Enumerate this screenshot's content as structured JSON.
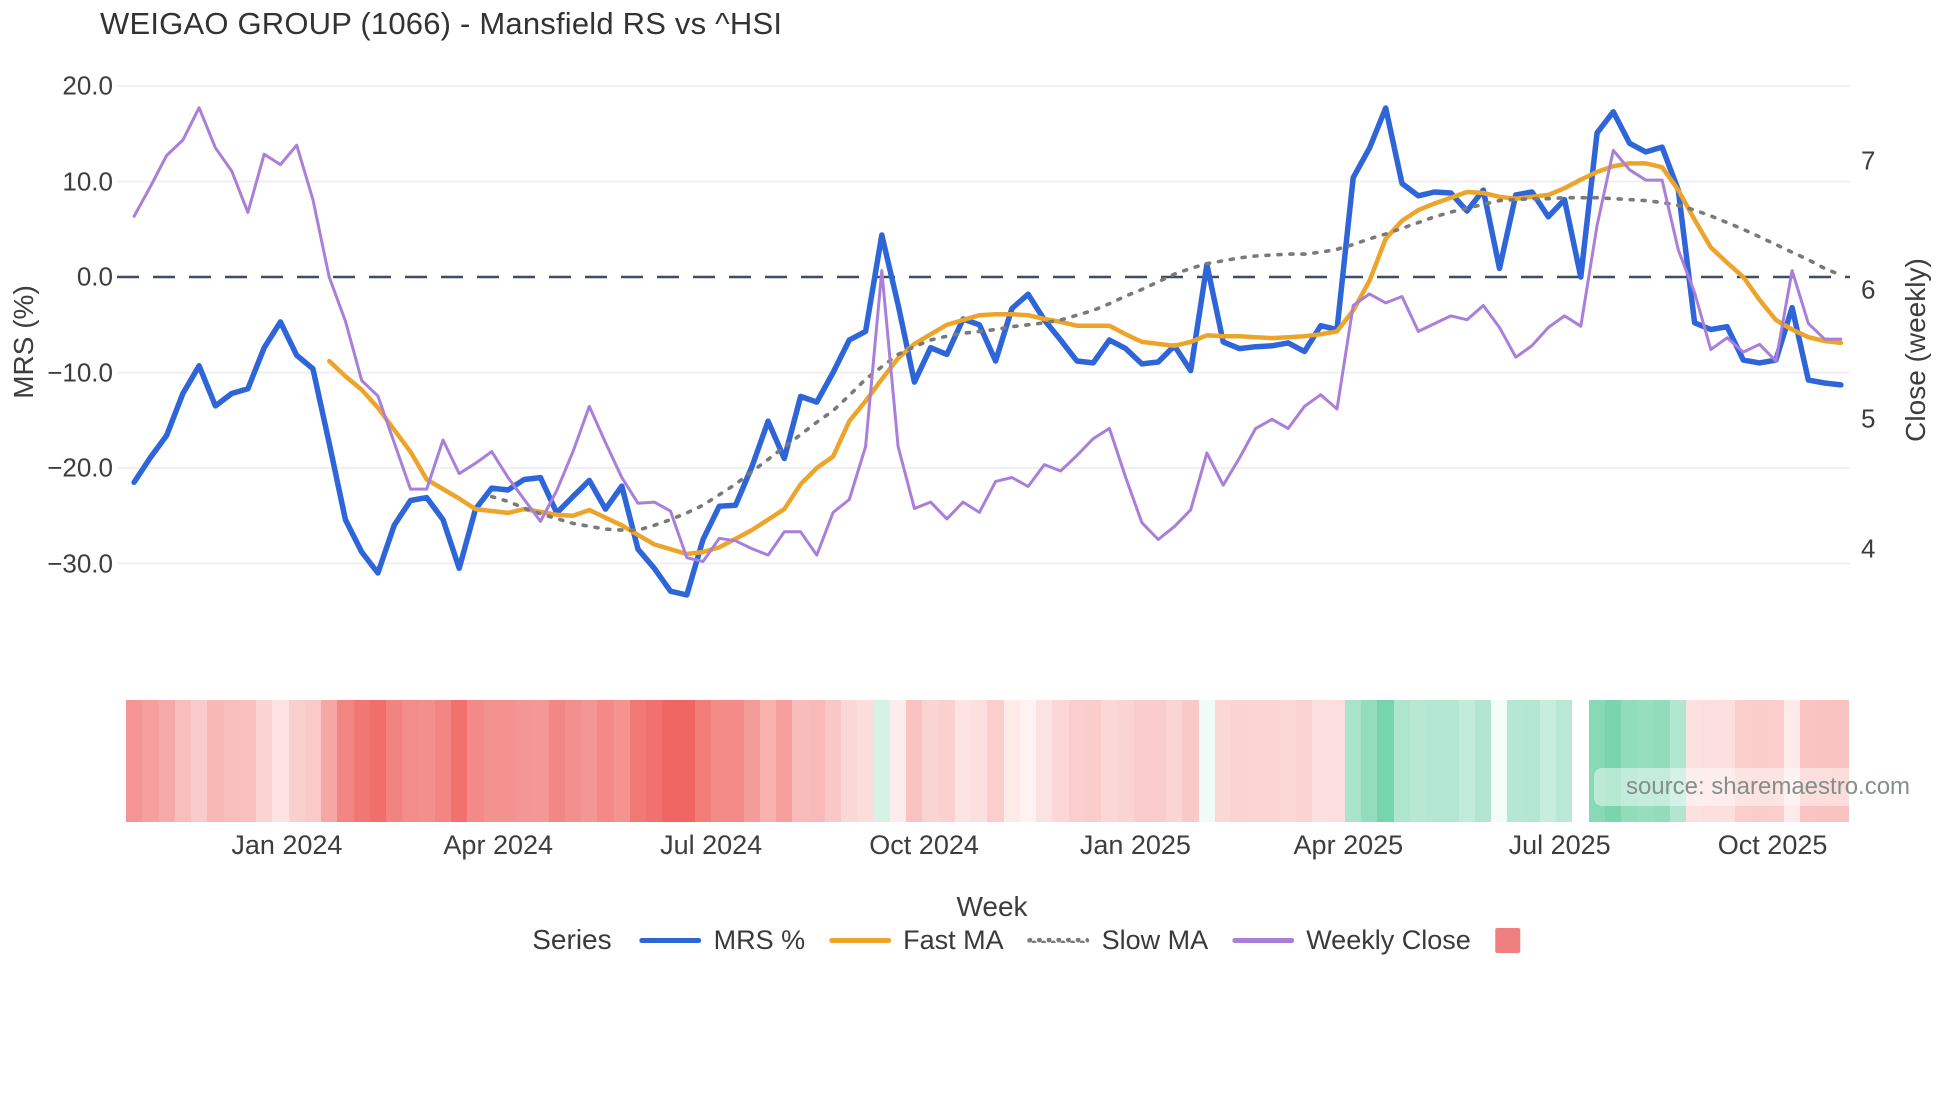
{
  "title": "WEIGAO GROUP (1066) - Mansfield RS vs ^HSI",
  "source_note": "source: sharemaestro.com",
  "axes": {
    "x_title": "Week",
    "y_left_title": "MRS (%)",
    "y_right_title": "Close (weekly)",
    "y_left_ticks": [
      {
        "label": "20.0",
        "value": 20
      },
      {
        "label": "10.0",
        "value": 10
      },
      {
        "label": "0.0",
        "value": 0
      },
      {
        "label": "−10.0",
        "value": -10
      },
      {
        "label": "−20.0",
        "value": -20
      },
      {
        "label": "−30.0",
        "value": -30
      }
    ],
    "y_right_ticks": [
      {
        "label": "7",
        "value": 7
      },
      {
        "label": "6",
        "value": 6
      },
      {
        "label": "5",
        "value": 5
      },
      {
        "label": "4",
        "value": 4
      }
    ],
    "x_ticks": [
      {
        "label": "Jan 2024",
        "week": 9.4
      },
      {
        "label": "Apr 2024",
        "week": 22.4
      },
      {
        "label": "Jul 2024",
        "week": 35.5
      },
      {
        "label": "Oct 2024",
        "week": 48.6
      },
      {
        "label": "Jan 2025",
        "week": 61.6
      },
      {
        "label": "Apr 2025",
        "week": 74.7
      },
      {
        "label": "Jul 2025",
        "week": 87.7
      },
      {
        "label": "Oct 2025",
        "week": 100.8
      }
    ]
  },
  "legend": {
    "title": "Series",
    "items": [
      {
        "label": "MRS %",
        "color": "#2e66d9",
        "style": "solid"
      },
      {
        "label": "Fast MA",
        "color": "#eda42b",
        "style": "solid"
      },
      {
        "label": "Slow MA",
        "color": "#7a7a7a",
        "style": "dotted"
      },
      {
        "label": "Weekly Close",
        "color": "#a97fd9",
        "style": "solid"
      },
      {
        "label": "",
        "color": "#f08080",
        "style": "square"
      }
    ]
  },
  "chart_data": {
    "type": "line",
    "x_unit": "weekly, late Oct 2023 through early Nov 2025 (106 weeks)",
    "grid": true,
    "y_left_range": [
      -35,
      22
    ],
    "y_right_range": [
      3.6,
      7.6
    ],
    "zero_line": {
      "axis": "left",
      "value": 0,
      "color": "#3e4d63",
      "dash": "long"
    },
    "series": [
      {
        "name": "MRS %",
        "axis": "left",
        "color": "#2e66d9",
        "width": 5.5,
        "dash": null,
        "start_week": 0,
        "values": [
          -21.5,
          -18.9,
          -16.6,
          -12.2,
          -9.3,
          -13.5,
          -12.2,
          -11.7,
          -7.4,
          -4.7,
          -8.2,
          -9.6,
          -17.4,
          -25.4,
          -28.8,
          -31.0,
          -26.0,
          -23.4,
          -23.1,
          -25.4,
          -30.5,
          -24.3,
          -22.1,
          -22.3,
          -21.2,
          -21.0,
          -24.7,
          -23.0,
          -21.3,
          -24.3,
          -21.9,
          -28.5,
          -30.5,
          -32.9,
          -33.3,
          -27.5,
          -24.0,
          -23.9,
          -19.9,
          -15.1,
          -19.0,
          -12.5,
          -13.1,
          -10.0,
          -6.6,
          -5.7,
          4.4,
          -2.9,
          -11.0,
          -7.4,
          -8.1,
          -4.4,
          -5.0,
          -8.8,
          -3.3,
          -1.8,
          -4.5,
          -6.6,
          -8.8,
          -9.0,
          -6.6,
          -7.5,
          -9.1,
          -8.9,
          -7.2,
          -9.8,
          1.3,
          -6.8,
          -7.5,
          -7.3,
          -7.2,
          -6.9,
          -7.8,
          -5.1,
          -5.5,
          10.4,
          13.5,
          17.7,
          9.8,
          8.5,
          8.9,
          8.8,
          6.9,
          9.1,
          0.9,
          8.6,
          8.9,
          6.3,
          8.1,
          0.0,
          15.1,
          17.3,
          14.0,
          13.1,
          13.6,
          9.1,
          -4.8,
          -5.5,
          -5.2,
          -8.7,
          -9.0,
          -8.7,
          -3.2,
          -10.8,
          -11.1,
          -11.3
        ]
      },
      {
        "name": "Fast MA",
        "axis": "left",
        "color": "#eda42b",
        "width": 4.5,
        "dash": null,
        "start_week": 12,
        "values": [
          -8.8,
          -10.4,
          -11.8,
          -13.7,
          -16.0,
          -18.3,
          -21.2,
          -22.2,
          -23.2,
          -24.3,
          -24.5,
          -24.7,
          -24.3,
          -24.6,
          -24.9,
          -25.0,
          -24.4,
          -25.2,
          -26.0,
          -27.0,
          -28.0,
          -28.5,
          -29.0,
          -28.8,
          -28.3,
          -27.4,
          -26.5,
          -25.4,
          -24.3,
          -21.7,
          -20.0,
          -18.8,
          -15.1,
          -13.0,
          -10.7,
          -8.5,
          -7.0,
          -6.0,
          -5.0,
          -4.5,
          -4.0,
          -3.9,
          -3.9,
          -4.0,
          -4.4,
          -4.7,
          -5.1,
          -5.1,
          -5.1,
          -6.0,
          -6.8,
          -7.0,
          -7.2,
          -6.8,
          -6.1,
          -6.2,
          -6.2,
          -6.3,
          -6.4,
          -6.3,
          -6.2,
          -6.0,
          -5.7,
          -3.5,
          -0.4,
          4.0,
          5.9,
          7.0,
          7.7,
          8.3,
          8.9,
          8.8,
          8.4,
          8.2,
          8.4,
          8.6,
          9.3,
          10.2,
          11.0,
          11.6,
          11.9,
          11.9,
          11.5,
          9.1,
          6.0,
          3.1,
          1.5,
          0.0,
          -2.4,
          -4.5,
          -5.5,
          -6.3,
          -6.7,
          -6.9
        ]
      },
      {
        "name": "Slow MA",
        "axis": "left",
        "color": "#7a7a7a",
        "width": 3.6,
        "dash": "3 9",
        "start_week": 22,
        "values": [
          -23.0,
          -23.5,
          -24.2,
          -24.8,
          -25.3,
          -25.8,
          -26.1,
          -26.4,
          -26.5,
          -26.5,
          -26.0,
          -25.4,
          -24.7,
          -23.9,
          -22.8,
          -21.7,
          -20.4,
          -19.1,
          -17.8,
          -16.5,
          -15.2,
          -14.0,
          -12.4,
          -10.7,
          -9.4,
          -8.1,
          -7.3,
          -6.6,
          -6.2,
          -5.9,
          -5.7,
          -5.5,
          -5.2,
          -5.0,
          -4.8,
          -4.5,
          -4.0,
          -3.5,
          -2.8,
          -2.0,
          -1.3,
          -0.5,
          0.3,
          0.9,
          1.4,
          1.7,
          2.0,
          2.2,
          2.3,
          2.4,
          2.4,
          2.6,
          2.9,
          3.4,
          4.0,
          4.5,
          5.1,
          5.7,
          6.3,
          6.8,
          7.2,
          7.6,
          8.0,
          8.1,
          8.2,
          8.2,
          8.3,
          8.3,
          8.3,
          8.2,
          8.1,
          8.0,
          7.8,
          7.5,
          7.0,
          6.4,
          5.7,
          5.0,
          4.2,
          3.4,
          2.6,
          1.8,
          0.9,
          0.2
        ]
      },
      {
        "name": "Weekly Close",
        "axis": "right",
        "color": "#a97fd9",
        "width": 3,
        "dash": null,
        "start_week": 0,
        "values": [
          6.57,
          6.8,
          7.04,
          7.16,
          7.41,
          7.1,
          6.92,
          6.6,
          7.05,
          6.97,
          7.12,
          6.7,
          6.1,
          5.76,
          5.3,
          5.18,
          4.82,
          4.46,
          4.46,
          4.84,
          4.58,
          4.66,
          4.75,
          4.55,
          4.38,
          4.21,
          4.45,
          4.75,
          5.1,
          4.82,
          4.55,
          4.35,
          4.36,
          4.29,
          3.93,
          3.9,
          4.08,
          4.06,
          4.0,
          3.95,
          4.13,
          4.13,
          3.95,
          4.28,
          4.38,
          4.79,
          6.15,
          4.79,
          4.31,
          4.36,
          4.23,
          4.36,
          4.28,
          4.52,
          4.55,
          4.48,
          4.65,
          4.6,
          4.72,
          4.85,
          4.93,
          4.55,
          4.2,
          4.07,
          4.17,
          4.3,
          4.74,
          4.49,
          4.7,
          4.93,
          5.0,
          4.93,
          5.1,
          5.19,
          5.08,
          5.88,
          5.97,
          5.9,
          5.95,
          5.68,
          5.74,
          5.8,
          5.77,
          5.88,
          5.71,
          5.48,
          5.57,
          5.71,
          5.8,
          5.72,
          6.5,
          7.08,
          6.93,
          6.85,
          6.85,
          6.31,
          5.98,
          5.54,
          5.63,
          5.52,
          5.58,
          5.45,
          6.15,
          5.74,
          5.62,
          5.62
        ]
      }
    ],
    "heatmap": {
      "metric": "MRS % per week (same values as MRS % series)",
      "negative_color": "#ee5f5b",
      "neutral_color": "#ffffff",
      "positive_color": "#4fc793"
    }
  }
}
